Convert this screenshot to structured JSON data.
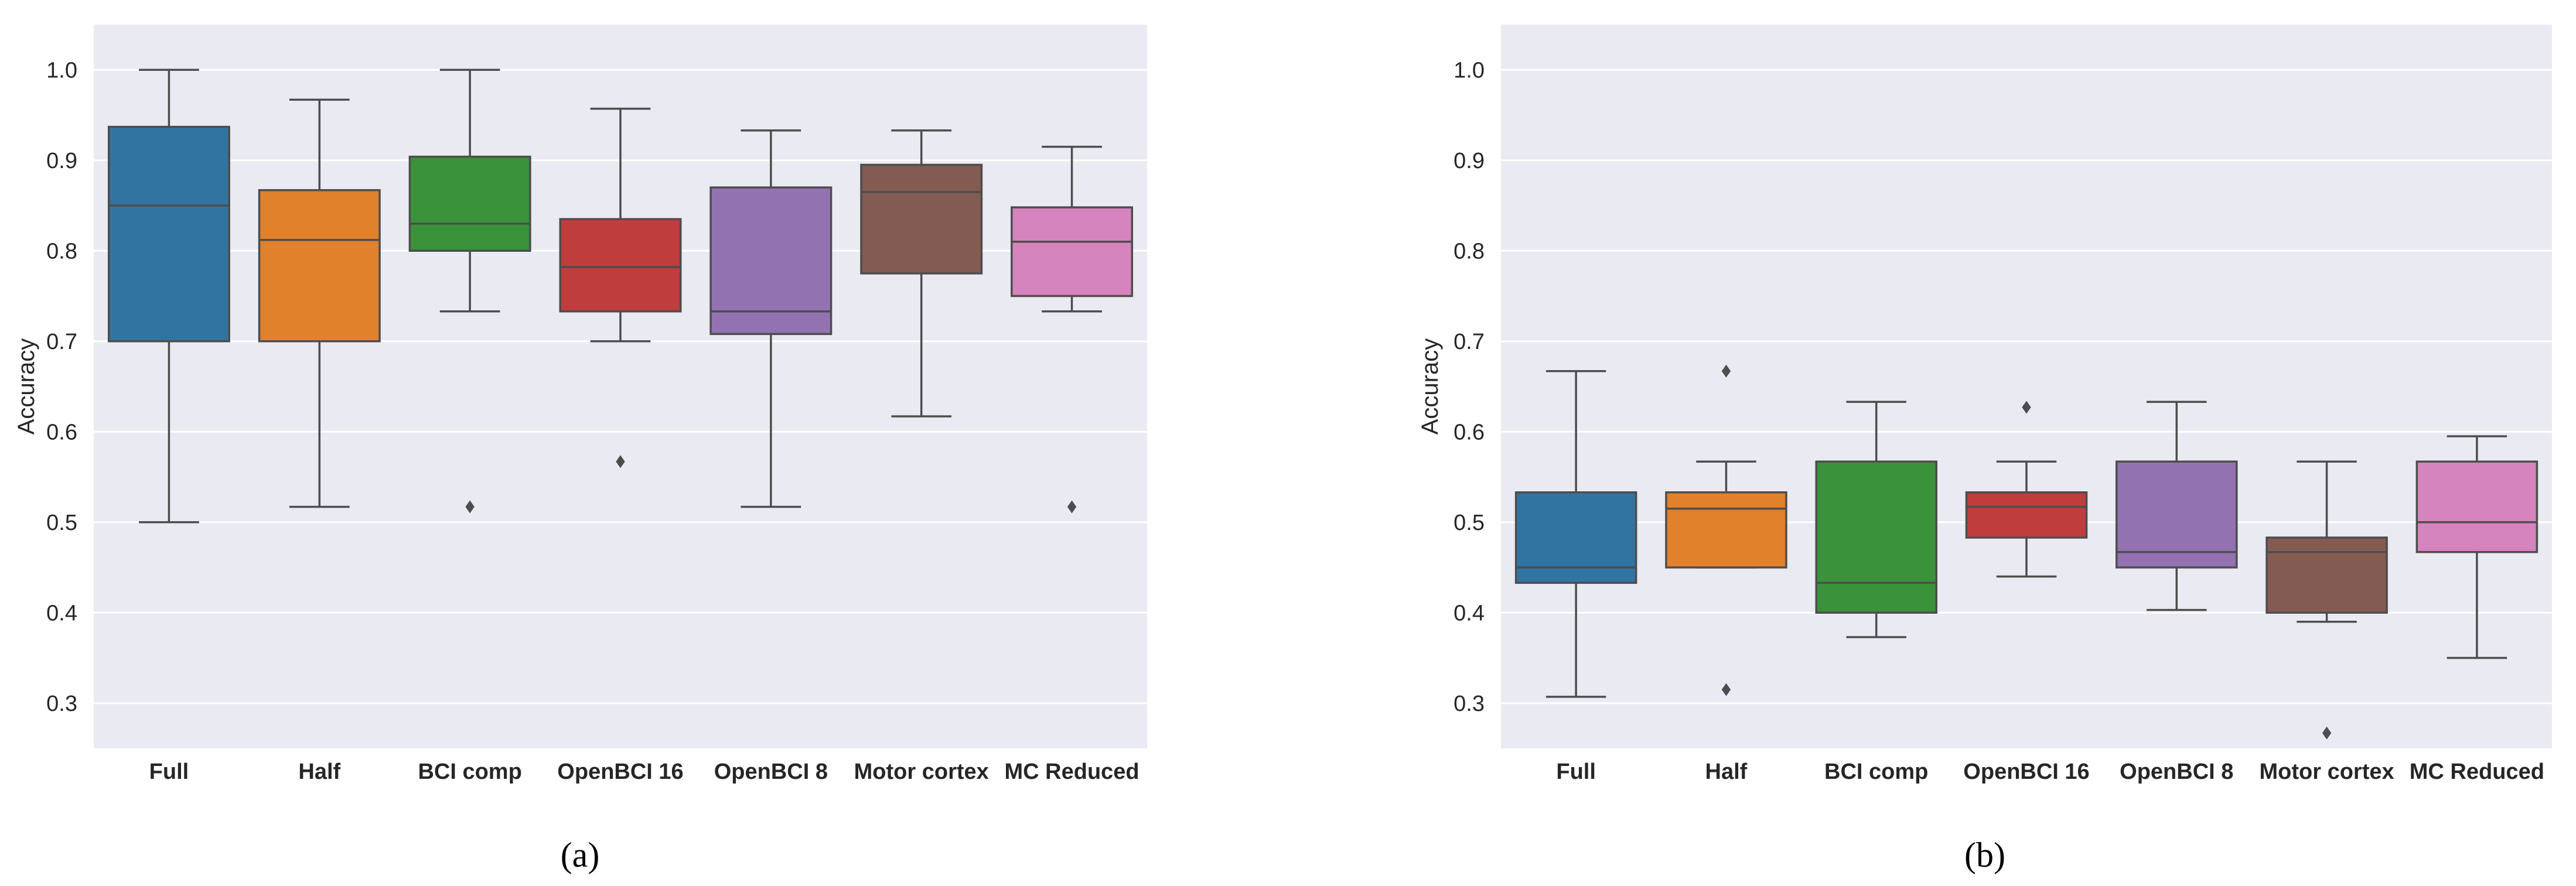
{
  "chart_data": [
    {
      "type": "box",
      "panel_label": "(a)",
      "title": "",
      "xlabel": "",
      "ylabel": "Accuracy",
      "ylim": [
        0.25,
        1.05
      ],
      "yticks": [
        "0.3",
        "0.4",
        "0.5",
        "0.6",
        "0.7",
        "0.8",
        "0.9",
        "1.0"
      ],
      "grid": true,
      "categories": [
        "Full",
        "Half",
        "BCI comp",
        "OpenBCI 16",
        "OpenBCI 8",
        "Motor cortex",
        "MC Reduced"
      ],
      "boxes": [
        {
          "category": "Full",
          "color": "#3274a1",
          "whisker_low": 0.5,
          "q1": 0.7,
          "median": 0.85,
          "q3": 0.937,
          "whisker_high": 1.0,
          "outliers": []
        },
        {
          "category": "Half",
          "color": "#e1812c",
          "whisker_low": 0.517,
          "q1": 0.7,
          "median": 0.812,
          "q3": 0.867,
          "whisker_high": 0.967,
          "outliers": []
        },
        {
          "category": "BCI comp",
          "color": "#3a923a",
          "whisker_low": 0.733,
          "q1": 0.8,
          "median": 0.83,
          "q3": 0.904,
          "whisker_high": 1.0,
          "outliers": [
            0.517
          ]
        },
        {
          "category": "OpenBCI 16",
          "color": "#c03d3e",
          "whisker_low": 0.7,
          "q1": 0.733,
          "median": 0.782,
          "q3": 0.835,
          "whisker_high": 0.957,
          "outliers": [
            0.567
          ]
        },
        {
          "category": "OpenBCI 8",
          "color": "#9372b2",
          "whisker_low": 0.517,
          "q1": 0.708,
          "median": 0.733,
          "q3": 0.87,
          "whisker_high": 0.933,
          "outliers": []
        },
        {
          "category": "Motor cortex",
          "color": "#845b53",
          "whisker_low": 0.617,
          "q1": 0.775,
          "median": 0.865,
          "q3": 0.895,
          "whisker_high": 0.933,
          "outliers": []
        },
        {
          "category": "MC Reduced",
          "color": "#d684bd",
          "whisker_low": 0.733,
          "q1": 0.75,
          "median": 0.81,
          "q3": 0.848,
          "whisker_high": 0.915,
          "outliers": [
            0.517
          ]
        }
      ]
    },
    {
      "type": "box",
      "panel_label": "(b)",
      "title": "",
      "xlabel": "",
      "ylabel": "Accuracy",
      "ylim": [
        0.25,
        1.05
      ],
      "yticks": [
        "0.3",
        "0.4",
        "0.5",
        "0.6",
        "0.7",
        "0.8",
        "0.9",
        "1.0"
      ],
      "grid": true,
      "categories": [
        "Full",
        "Half",
        "BCI comp",
        "OpenBCI 16",
        "OpenBCI 8",
        "Motor cortex",
        "MC Reduced"
      ],
      "boxes": [
        {
          "category": "Full",
          "color": "#3274a1",
          "whisker_low": 0.307,
          "q1": 0.433,
          "median": 0.45,
          "q3": 0.533,
          "whisker_high": 0.667,
          "outliers": []
        },
        {
          "category": "Half",
          "color": "#e1812c",
          "whisker_low": 0.45,
          "q1": 0.45,
          "median": 0.515,
          "q3": 0.533,
          "whisker_high": 0.567,
          "outliers": [
            0.667,
            0.315
          ]
        },
        {
          "category": "BCI comp",
          "color": "#3a923a",
          "whisker_low": 0.373,
          "q1": 0.4,
          "median": 0.433,
          "q3": 0.567,
          "whisker_high": 0.633,
          "outliers": []
        },
        {
          "category": "OpenBCI 16",
          "color": "#c03d3e",
          "whisker_low": 0.44,
          "q1": 0.483,
          "median": 0.517,
          "q3": 0.533,
          "whisker_high": 0.567,
          "outliers": [
            0.627
          ]
        },
        {
          "category": "OpenBCI 8",
          "color": "#9372b2",
          "whisker_low": 0.403,
          "q1": 0.45,
          "median": 0.467,
          "q3": 0.567,
          "whisker_high": 0.633,
          "outliers": []
        },
        {
          "category": "Motor cortex",
          "color": "#845b53",
          "whisker_low": 0.39,
          "q1": 0.4,
          "median": 0.467,
          "q3": 0.483,
          "whisker_high": 0.567,
          "outliers": [
            0.267
          ]
        },
        {
          "category": "MC Reduced",
          "color": "#d684bd",
          "whisker_low": 0.35,
          "q1": 0.467,
          "median": 0.5,
          "q3": 0.567,
          "whisker_high": 0.595,
          "outliers": []
        }
      ]
    }
  ],
  "style": {
    "panel_bg": "#eaeaf2",
    "grid_color": "#ffffff",
    "line_color": "#4d4d4d",
    "text_color": "#262626"
  }
}
